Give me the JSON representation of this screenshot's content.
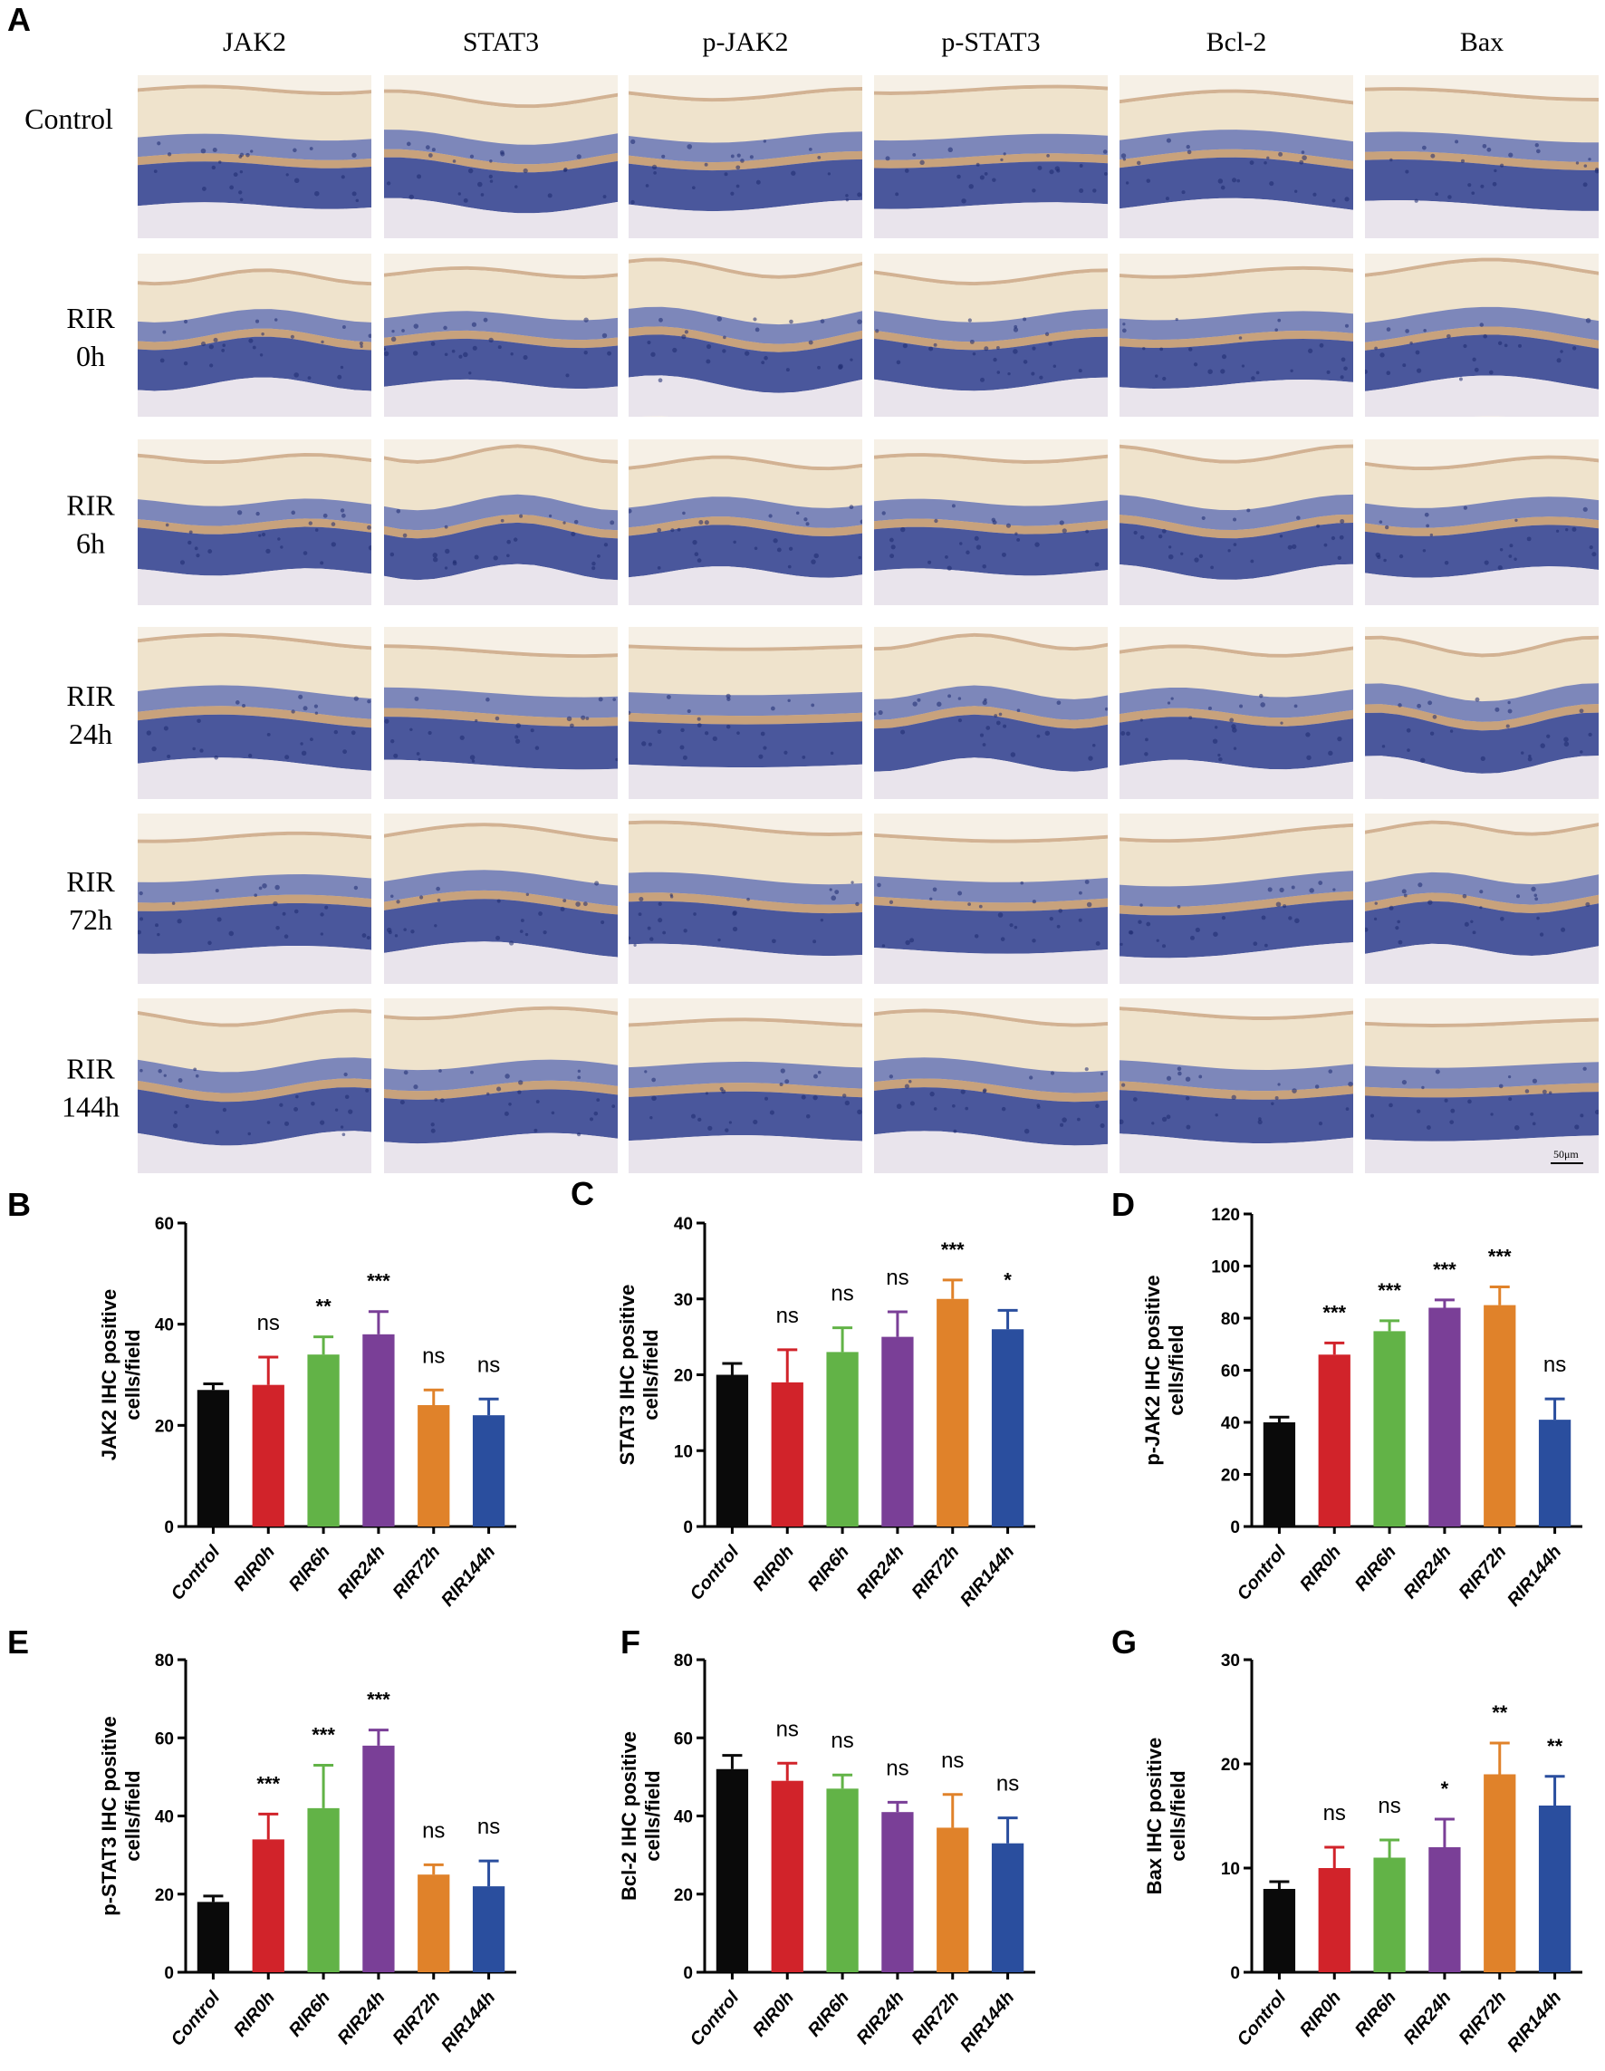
{
  "figure": {
    "panel_a_letter": "A",
    "columns": [
      "JAK2",
      "STAT3",
      "p-JAK2",
      "p-STAT3",
      "Bcl-2",
      "Bax"
    ],
    "rows": [
      {
        "line1": "Control",
        "line2": ""
      },
      {
        "line1": "RIR",
        "line2": "0h"
      },
      {
        "line1": "RIR",
        "line2": "6h"
      },
      {
        "line1": "RIR",
        "line2": "24h"
      },
      {
        "line1": "RIR",
        "line2": "72h"
      },
      {
        "line1": "RIR",
        "line2": "144h"
      }
    ],
    "scale_bar_label": "50μm",
    "tissue_colors": {
      "bg": "#f6f0e6",
      "gcl": "#efe3cc",
      "ipl": "#e6d6b8",
      "nucleus": "#4a5aa6",
      "nucleus_dark": "#2c3c8e",
      "brown": "#b5804f",
      "outer": "#e9e4ec"
    }
  },
  "colors": {
    "Control": "#0a0a0a",
    "RIR0h": "#d1232a",
    "RIR6h": "#62b347",
    "RIR24h": "#7a3f97",
    "RIR72h": "#e0822a",
    "RIR144h": "#2a4e9e"
  },
  "chart_data": [
    {
      "letter": "B",
      "type": "bar",
      "ylabel_line1": "JAK2 IHC positive",
      "ylabel_line2": "cells/field",
      "ylim": [
        0,
        60
      ],
      "yticks": [
        "0",
        "20",
        "40",
        "60"
      ],
      "categories": [
        "Control",
        "RIR0h",
        "RIR6h",
        "RIR24h",
        "RIR72h",
        "RIR144h"
      ],
      "values": [
        27,
        28,
        34,
        38,
        24,
        22
      ],
      "errors": [
        1.2,
        5.5,
        3.5,
        4.5,
        3.0,
        3.2
      ],
      "significance": [
        "",
        "ns",
        "**",
        "***",
        "ns",
        "ns"
      ]
    },
    {
      "letter": "C",
      "type": "bar",
      "ylabel_line1": "STAT3 IHC positive",
      "ylabel_line2": "cells/field",
      "ylim": [
        0,
        40
      ],
      "yticks": [
        "0",
        "10",
        "20",
        "30",
        "40"
      ],
      "categories": [
        "Control",
        "RIR0h",
        "RIR6h",
        "RIR24h",
        "RIR72h",
        "RIR144h"
      ],
      "values": [
        20,
        19,
        23,
        25,
        30,
        26
      ],
      "errors": [
        1.5,
        4.3,
        3.2,
        3.3,
        2.5,
        2.5
      ],
      "significance": [
        "",
        "ns",
        "ns",
        "ns",
        "***",
        "*"
      ]
    },
    {
      "letter": "D",
      "type": "bar",
      "ylabel_line1": "p-JAK2 IHC positive",
      "ylabel_line2": "cells/field",
      "ylim": [
        0,
        120
      ],
      "yticks": [
        "0",
        "20",
        "40",
        "60",
        "80",
        "100",
        "120"
      ],
      "categories": [
        "Control",
        "RIR0h",
        "RIR6h",
        "RIR24h",
        "RIR72h",
        "RIR144h"
      ],
      "values": [
        40,
        66,
        75,
        84,
        85,
        41
      ],
      "errors": [
        2.0,
        4.5,
        4.0,
        3.0,
        7.0,
        8.0
      ],
      "significance": [
        "",
        "***",
        "***",
        "***",
        "***",
        "ns"
      ]
    },
    {
      "letter": "E",
      "type": "bar",
      "ylabel_line1": "p-STAT3 IHC positive",
      "ylabel_line2": "cells/field",
      "ylim": [
        0,
        80
      ],
      "yticks": [
        "0",
        "20",
        "40",
        "60",
        "80"
      ],
      "categories": [
        "Control",
        "RIR0h",
        "RIR6h",
        "RIR24h",
        "RIR72h",
        "RIR144h"
      ],
      "values": [
        18,
        34,
        42,
        58,
        25,
        22
      ],
      "errors": [
        1.5,
        6.5,
        11.0,
        4.0,
        2.5,
        6.5
      ],
      "significance": [
        "",
        "***",
        "***",
        "***",
        "ns",
        "ns"
      ]
    },
    {
      "letter": "F",
      "type": "bar",
      "ylabel_line1": "Bcl-2 IHC positive",
      "ylabel_line2": "cells/field",
      "ylim": [
        0,
        80
      ],
      "yticks": [
        "0",
        "20",
        "40",
        "60",
        "80"
      ],
      "categories": [
        "Control",
        "RIR0h",
        "RIR6h",
        "RIR24h",
        "RIR72h",
        "RIR144h"
      ],
      "values": [
        52,
        49,
        47,
        41,
        37,
        33
      ],
      "errors": [
        3.5,
        4.5,
        3.5,
        2.5,
        8.5,
        6.5
      ],
      "significance": [
        "",
        "ns",
        "ns",
        "ns",
        "ns",
        "ns"
      ]
    },
    {
      "letter": "G",
      "type": "bar",
      "ylabel_line1": "Bax IHC positive",
      "ylabel_line2": "cells/field",
      "ylim": [
        0,
        30
      ],
      "yticks": [
        "0",
        "10",
        "20",
        "30"
      ],
      "categories": [
        "Control",
        "RIR0h",
        "RIR6h",
        "RIR24h",
        "RIR72h",
        "RIR144h"
      ],
      "values": [
        8,
        10,
        11,
        12,
        19,
        16
      ],
      "errors": [
        0.7,
        2.0,
        1.7,
        2.7,
        3.0,
        2.8
      ],
      "significance": [
        "",
        "ns",
        "ns",
        "*",
        "**",
        "**"
      ]
    }
  ]
}
